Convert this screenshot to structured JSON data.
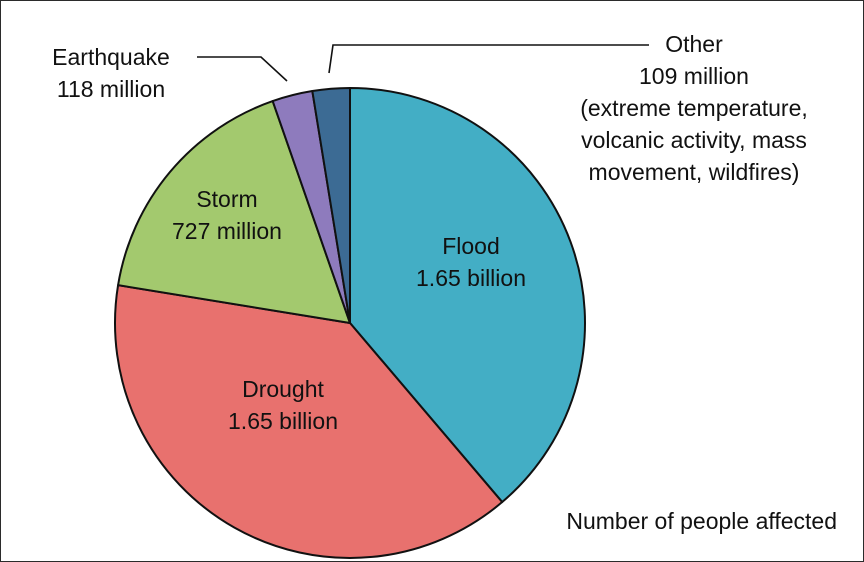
{
  "chart_data": {
    "type": "pie",
    "title": "",
    "caption": "Number of people affected",
    "slices": [
      {
        "key": "flood",
        "label": "Flood",
        "value_text": "1.65 billion",
        "value": 1.65,
        "color": "#43AEC5"
      },
      {
        "key": "drought",
        "label": "Drought",
        "value_text": "1.65 billion",
        "value": 1.65,
        "color": "#E8716E"
      },
      {
        "key": "storm",
        "label": "Storm",
        "value_text": "727 million",
        "value": 0.727,
        "color": "#A3C96E"
      },
      {
        "key": "earthquake",
        "label": "Earthquake",
        "value_text": "118 million",
        "value": 0.118,
        "color": "#8E7BBD"
      },
      {
        "key": "other",
        "label": "Other",
        "value_text": "109 million",
        "value": 0.109,
        "color": "#3C6B94",
        "note_lines": [
          "(extreme temperature,",
          "volcanic activity, mass",
          "movement, wildfires)"
        ]
      }
    ]
  }
}
